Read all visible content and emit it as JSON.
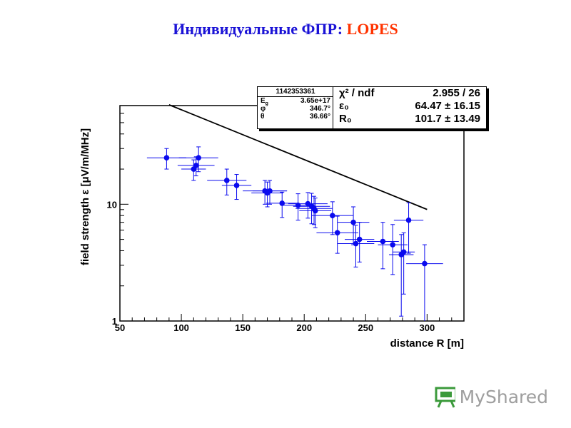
{
  "title": {
    "part1": "Индивидуальные  ФПР: ",
    "part2": "LOPES"
  },
  "info_box": {
    "event_id": "1142353361",
    "rows": [
      {
        "label": "E",
        "sub": "g",
        "value": "3.65e+17"
      },
      {
        "label": "φ",
        "sub": "",
        "value": "346.7°"
      },
      {
        "label": "θ",
        "sub": "",
        "value": "36.66°"
      }
    ]
  },
  "fit_box": {
    "rows": [
      {
        "label": "χ² / ndf",
        "value": "2.955 / 26"
      },
      {
        "label": "ε₀",
        "value": "64.47 ± 16.15"
      },
      {
        "label": "R₀",
        "value": "101.7 ± 13.49"
      }
    ]
  },
  "watermark": {
    "text": "MyShared"
  },
  "colors": {
    "title_blue": "#1a12d6",
    "title_red": "#ff3300",
    "points": "#0a0aee",
    "fit_line": "#000000"
  },
  "chart_data": {
    "type": "scatter",
    "xlabel": "distance R [m]",
    "ylabel": "field strength ε [μV/m/MHz]",
    "xlim": [
      50,
      330
    ],
    "ylim": [
      1,
      70
    ],
    "y_scale": "log",
    "x_ticks": [
      50,
      100,
      150,
      200,
      250,
      300
    ],
    "y_tick_labels": [
      1,
      10
    ],
    "grid": false,
    "fit": {
      "type": "exponential",
      "eps0": 64.47,
      "R0": 101.7,
      "x_range": [
        90,
        300
      ]
    },
    "points": [
      {
        "x": 88,
        "y": 25,
        "xerr": 16,
        "yerr_lo": 5,
        "yerr_hi": 5
      },
      {
        "x": 110,
        "y": 20,
        "xerr": 10,
        "yerr_lo": 4,
        "yerr_hi": 4
      },
      {
        "x": 112,
        "y": 21.5,
        "xerr": 15,
        "yerr_lo": 4,
        "yerr_hi": 4
      },
      {
        "x": 114,
        "y": 25,
        "xerr": 16,
        "yerr_lo": 6,
        "yerr_hi": 6
      },
      {
        "x": 137,
        "y": 16,
        "xerr": 16,
        "yerr_lo": 4,
        "yerr_hi": 4
      },
      {
        "x": 145,
        "y": 14.5,
        "xerr": 12,
        "yerr_lo": 3.5,
        "yerr_hi": 3.5
      },
      {
        "x": 168,
        "y": 13,
        "xerr": 18,
        "yerr_lo": 3,
        "yerr_hi": 3
      },
      {
        "x": 172,
        "y": 13,
        "xerr": 14,
        "yerr_lo": 3,
        "yerr_hi": 3
      },
      {
        "x": 170,
        "y": 12.5,
        "xerr": 13,
        "yerr_lo": 3,
        "yerr_hi": 3
      },
      {
        "x": 182,
        "y": 10.2,
        "xerr": 13,
        "yerr_lo": 2.5,
        "yerr_hi": 2.5
      },
      {
        "x": 195,
        "y": 9.8,
        "xerr": 14,
        "yerr_lo": 2.5,
        "yerr_hi": 2.5
      },
      {
        "x": 203,
        "y": 10.1,
        "xerr": 16,
        "yerr_lo": 2.5,
        "yerr_hi": 2.5
      },
      {
        "x": 206,
        "y": 9.6,
        "xerr": 15,
        "yerr_lo": 2.8,
        "yerr_hi": 2.8
      },
      {
        "x": 208,
        "y": 9.2,
        "xerr": 15,
        "yerr_lo": 2.5,
        "yerr_hi": 2.5
      },
      {
        "x": 209,
        "y": 8.8,
        "xerr": 13,
        "yerr_lo": 2.5,
        "yerr_hi": 2.5
      },
      {
        "x": 223,
        "y": 8.0,
        "xerr": 17,
        "yerr_lo": 2.5,
        "yerr_hi": 2.5
      },
      {
        "x": 227,
        "y": 5.7,
        "xerr": 17,
        "yerr_lo": 1.9,
        "yerr_hi": 2.2
      },
      {
        "x": 240,
        "y": 7.0,
        "xerr": 13,
        "yerr_lo": 2.5,
        "yerr_hi": 2.5
      },
      {
        "x": 242,
        "y": 4.6,
        "xerr": 15,
        "yerr_lo": 1.7,
        "yerr_hi": 2.0
      },
      {
        "x": 245,
        "y": 5.0,
        "xerr": 12,
        "yerr_lo": 1.8,
        "yerr_hi": 2.0
      },
      {
        "x": 264,
        "y": 4.8,
        "xerr": 13,
        "yerr_lo": 2.0,
        "yerr_hi": 2.2
      },
      {
        "x": 272,
        "y": 4.5,
        "xerr": 12,
        "yerr_lo": 2.0,
        "yerr_hi": 2.2
      },
      {
        "x": 279,
        "y": 3.7,
        "xerr": 10,
        "yerr_lo": 2.6,
        "yerr_hi": 1.8
      },
      {
        "x": 281,
        "y": 3.9,
        "xerr": 9,
        "yerr_lo": 2.2,
        "yerr_hi": 1.8
      },
      {
        "x": 285,
        "y": 7.3,
        "xerr": 12,
        "yerr_lo": 3.5,
        "yerr_hi": 3.0
      },
      {
        "x": 298,
        "y": 3.1,
        "xerr": 15,
        "yerr_lo": 2.1,
        "yerr_hi": 1.4
      }
    ]
  }
}
